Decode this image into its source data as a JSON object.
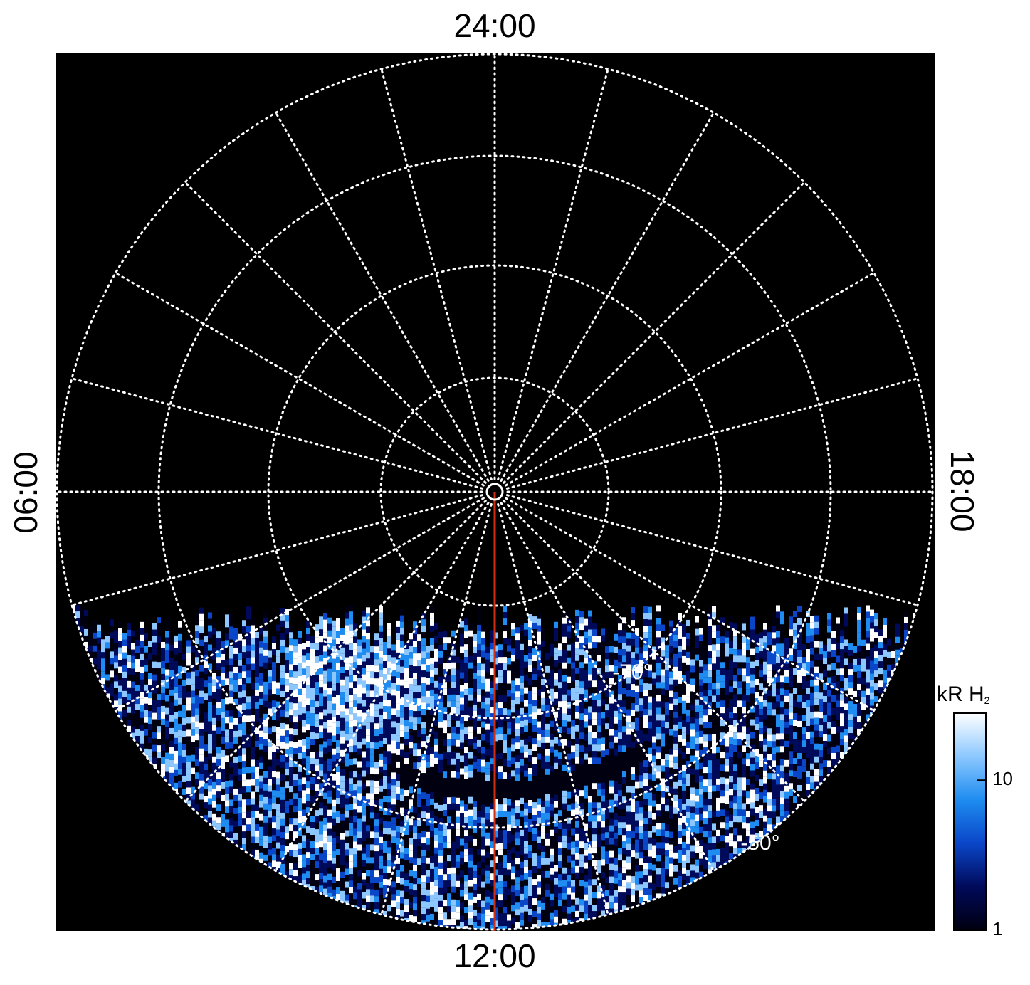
{
  "chart_data": {
    "type": "polar-map",
    "local_time_labels": {
      "top": "24:00",
      "bottom": "12:00",
      "left": "06:00",
      "right": "18:00"
    },
    "latitude_labels": [
      "-70°",
      "-50°"
    ],
    "colorbar": {
      "title": "kR H",
      "title_subscript": "2",
      "scale": "log",
      "lim": [
        1,
        28
      ],
      "ticks": [
        1,
        10
      ],
      "colors": [
        "#000010",
        "#000a5a",
        "#0a46c8",
        "#1e8cf0",
        "#8cc8ff",
        "#ffffff"
      ]
    }
  }
}
